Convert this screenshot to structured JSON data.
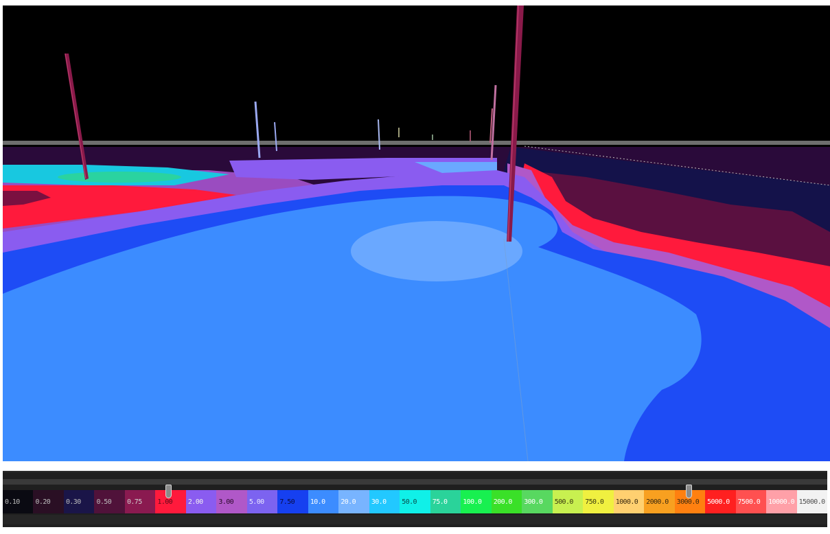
{
  "viewport": {
    "sky_color": "#000000",
    "horizon_color": "#7a7a7a"
  },
  "contour_colors": {
    "outer_dark": "#2a0a3a",
    "maroon": "#7a1040",
    "red": "#ff1a3c",
    "purple": "#8a5cf0",
    "violet": "#b068d8",
    "blue": "#1e4cf5",
    "mid_blue": "#3c8cff",
    "light_blue": "#6aa8ff",
    "cyan": "#18e0f0",
    "teal": "#2ad3c0",
    "green": "#5cf08a",
    "well_color": "#8a1a4a"
  },
  "legend": {
    "ranges": [
      {
        "label": "0.10",
        "color": "#0a0a12",
        "text": "#bdbdbd"
      },
      {
        "label": "0.20",
        "color": "#2a0f24",
        "text": "#bdbdbd"
      },
      {
        "label": "0.30",
        "color": "#1a1548",
        "text": "#bdbdbd"
      },
      {
        "label": "0.50",
        "color": "#50123a",
        "text": "#bdbdbd"
      },
      {
        "label": "0.75",
        "color": "#8a1a50",
        "text": "#d0d0d0"
      },
      {
        "label": "1.00",
        "color": "#ff1a3c",
        "text": "#5a0a1a"
      },
      {
        "label": "2.00",
        "color": "#8a5cf0",
        "text": "#f0f0f0"
      },
      {
        "label": "3.00",
        "color": "#b058c8",
        "text": "#2a0a2a"
      },
      {
        "label": "5.00",
        "color": "#7c63f0",
        "text": "#e8e8ff"
      },
      {
        "label": "7.50",
        "color": "#1640f0",
        "text": "#0a0a40"
      },
      {
        "label": "10.0",
        "color": "#3c8cff",
        "text": "#ffffff"
      },
      {
        "label": "20.0",
        "color": "#78b4ff",
        "text": "#ffffff"
      },
      {
        "label": "30.0",
        "color": "#22c8ff",
        "text": "#ffffff"
      },
      {
        "label": "50.0",
        "color": "#10f0e8",
        "text": "#0a4a4a"
      },
      {
        "label": "75.0",
        "color": "#2ad39a",
        "text": "#ffffff"
      },
      {
        "label": "100.0",
        "color": "#18f050",
        "text": "#ffffff"
      },
      {
        "label": "200.0",
        "color": "#3ae028",
        "text": "#ffffff"
      },
      {
        "label": "300.0",
        "color": "#58d860",
        "text": "#ffffff"
      },
      {
        "label": "500.0",
        "color": "#c8f050",
        "text": "#3a3a10"
      },
      {
        "label": "750.0",
        "color": "#f0f040",
        "text": "#3a3a10"
      },
      {
        "label": "1000.0",
        "color": "#ffd070",
        "text": "#3a2a10"
      },
      {
        "label": "2000.0",
        "color": "#f8a020",
        "text": "#3a2a10"
      },
      {
        "label": "3000.0",
        "color": "#ff8010",
        "text": "#3a2a10"
      },
      {
        "label": "5000.0",
        "color": "#ff2020",
        "text": "#ffffff"
      },
      {
        "label": "7500.0",
        "color": "#ff5050",
        "text": "#ffffff"
      },
      {
        "label": "10000.0",
        "color": "#ffa0a8",
        "text": "#ffffff"
      },
      {
        "label": "15000.0",
        "color": "#f2f2f2",
        "text": "#505050"
      }
    ],
    "handles": [
      {
        "name": "lower-threshold-handle",
        "position": 0.201
      },
      {
        "name": "upper-threshold-handle",
        "position": 0.832
      }
    ]
  }
}
